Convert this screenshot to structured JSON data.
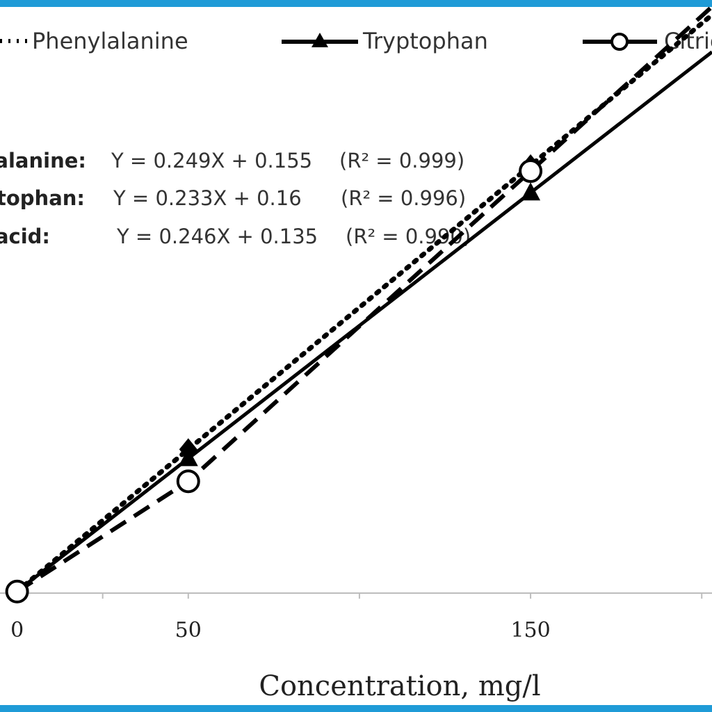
{
  "chart_data": {
    "type": "line",
    "title": "",
    "xlabel": "Concentration, mg/l",
    "ylabel": "",
    "xlim": [
      -5,
      203
    ],
    "ylim": [
      0,
      52
    ],
    "x_ticks": [
      0,
      50,
      150
    ],
    "grid": false,
    "legend_position": "top",
    "series": [
      {
        "name": "Phenylalanine",
        "style": "dotted",
        "marker": "diamond",
        "color": "#000000",
        "x": [
          0,
          50,
          150
        ],
        "y": [
          0.155,
          12.6,
          37.5
        ]
      },
      {
        "name": "Tryptophan",
        "style": "solid",
        "marker": "triangle",
        "color": "#000000",
        "x": [
          0,
          50,
          150
        ],
        "y": [
          0.16,
          11.8,
          35.1
        ]
      },
      {
        "name": "Citric acid",
        "style": "dashed",
        "marker": "open-circle",
        "color": "#000000",
        "x": [
          0,
          50,
          150
        ],
        "y": [
          0.135,
          9.8,
          37.0
        ]
      }
    ],
    "equations": [
      {
        "label": "Phenylalanine:",
        "formula": "Y = 0.249X + 0.155",
        "r2": "(R² = 0.999)"
      },
      {
        "label": "Tryptophan:",
        "formula": "Y = 0.233X + 0.16",
        "r2": "(R² = 0.996)"
      },
      {
        "label": "Citric acid:",
        "formula": "Y = 0.246X + 0.135",
        "r2": "(R² = 0.990)"
      }
    ]
  }
}
